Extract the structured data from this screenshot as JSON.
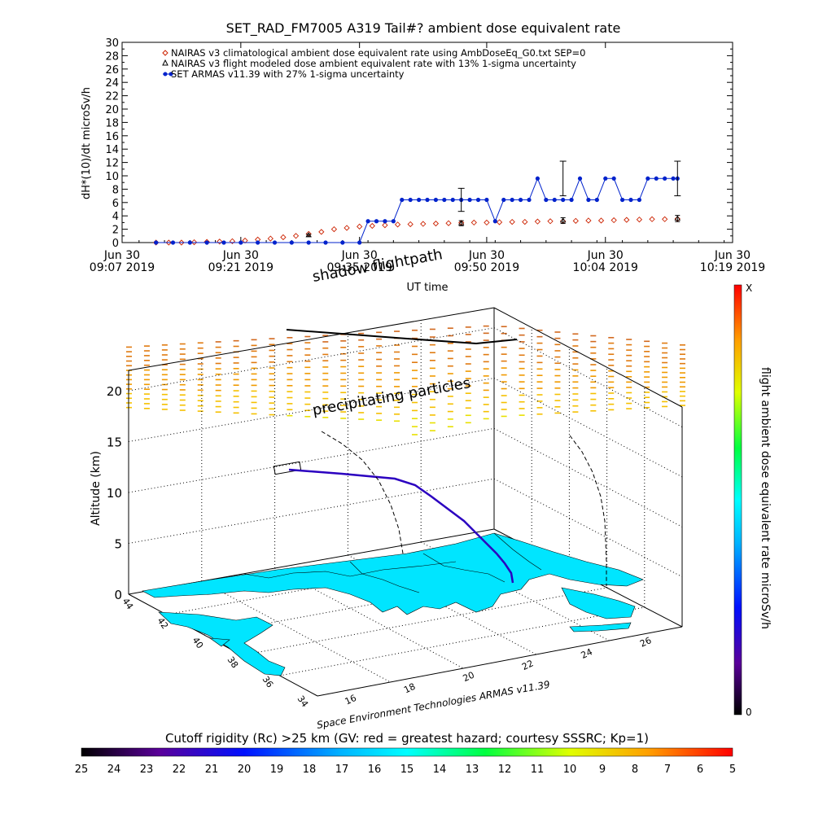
{
  "top_chart": {
    "title": "SET_RAD_FM7005  A319 Tail#? ambient dose equivalent rate",
    "ylabel": "dH*(10)/dt microSv/h",
    "xlabel": "UT time",
    "legend": [
      "NAIRAS v3 climatological ambient dose equivalent rate using AmbDoseEq_G0.txt SEP=0",
      "NAIRAS v3 flight modeled dose ambient equivalent rate with 13% 1-sigma uncertainty",
      "SET ARMAS v11.39 with 27% 1-sigma uncertainty"
    ],
    "y_ticks": [
      "0",
      "2",
      "4",
      "6",
      "8",
      "10",
      "12",
      "14",
      "16",
      "18",
      "20",
      "22",
      "24",
      "26",
      "28",
      "30"
    ],
    "x_ticks": [
      {
        "day": "Jun 30",
        "time": "09:07 2019"
      },
      {
        "day": "Jun 30",
        "time": "09:21 2019"
      },
      {
        "day": "Jun 30",
        "time": "09:35 2019"
      },
      {
        "day": "Jun 30",
        "time": "09:50 2019"
      },
      {
        "day": "Jun 30",
        "time": "10:04 2019"
      },
      {
        "day": "Jun 30",
        "time": "10:19 2019"
      }
    ]
  },
  "chart_data": [
    {
      "type": "line",
      "title": "SET_RAD_FM7005  A319 Tail#? ambient dose equivalent rate",
      "xlabel": "UT time",
      "ylabel": "dH*(10)/dt microSv/h",
      "x_unit": "minutes after 09:07 UT, Jun 30 2019",
      "xlim": [
        0,
        72
      ],
      "ylim": [
        0,
        30
      ],
      "grid": false,
      "legend_position": "top-left",
      "series": [
        {
          "name": "NAIRAS v3 climatological ambient dose equivalent rate using AmbDoseEq_G0.txt SEP=0",
          "color": "#cc2200",
          "marker": "diamond",
          "x": [
            4,
            5.5,
            7,
            8.5,
            10,
            11.5,
            13,
            14.5,
            16,
            17.5,
            19,
            20.5,
            22,
            23.5,
            25,
            26.5,
            28,
            29.5,
            31,
            32.5,
            34,
            35.5,
            37,
            38.5,
            40,
            41.5,
            43,
            44.5,
            46,
            47.5,
            49,
            50.5,
            52,
            53.5,
            55,
            56.5,
            58,
            59.5,
            61,
            62.5,
            64,
            65.5
          ],
          "values": [
            0,
            0,
            0,
            0.05,
            0.1,
            0.15,
            0.2,
            0.3,
            0.45,
            0.6,
            0.8,
            1.0,
            1.3,
            1.6,
            2.0,
            2.2,
            2.4,
            2.5,
            2.6,
            2.7,
            2.75,
            2.8,
            2.85,
            2.9,
            2.95,
            3.0,
            3.0,
            3.05,
            3.1,
            3.1,
            3.15,
            3.2,
            3.2,
            3.25,
            3.3,
            3.3,
            3.35,
            3.4,
            3.45,
            3.5,
            3.5,
            3.55
          ]
        },
        {
          "name": "NAIRAS v3 flight modeled dose ambient equivalent rate with 13% 1-sigma uncertainty",
          "color": "#000000",
          "marker": "triangle",
          "x": [
            22,
            40,
            52,
            65.5
          ],
          "values": [
            1.1,
            2.9,
            3.3,
            3.6
          ],
          "error_pct": 13
        },
        {
          "name": "SET ARMAS v11.39 with 27% 1-sigma uncertainty",
          "color": "#0022cc",
          "marker": "circle",
          "x": [
            4,
            6,
            8,
            10,
            12,
            14,
            16,
            18,
            20,
            22,
            24,
            26,
            28,
            29,
            30,
            31,
            32,
            33,
            34,
            35,
            36,
            37,
            38,
            39,
            40,
            41,
            42,
            43,
            44,
            45,
            46,
            47,
            48,
            49,
            50,
            51,
            52,
            53,
            54,
            55,
            56,
            57,
            58,
            59,
            60,
            61,
            62,
            63,
            64,
            65,
            65.5
          ],
          "values": [
            0,
            0,
            0,
            0,
            0,
            0,
            0,
            0,
            0,
            0,
            0,
            0,
            0,
            3.2,
            3.2,
            3.2,
            3.2,
            6.4,
            6.4,
            6.4,
            6.4,
            6.4,
            6.4,
            6.4,
            6.4,
            6.4,
            6.4,
            6.4,
            3.2,
            6.4,
            6.4,
            6.4,
            6.4,
            9.6,
            6.4,
            6.4,
            6.4,
            6.4,
            9.6,
            6.4,
            6.4,
            9.6,
            9.6,
            6.4,
            6.4,
            6.4,
            9.6,
            9.6,
            9.6,
            9.6,
            9.6
          ],
          "error_pct": 27
        }
      ]
    },
    {
      "type": "scatter",
      "title": "",
      "dimensions": "3d",
      "zlabel": "Altitude (km)",
      "zlim": [
        0,
        22
      ],
      "z_ticks": [
        "0",
        "5",
        "10",
        "15",
        "20"
      ],
      "lat_ticks": [
        "34",
        "36",
        "38",
        "40",
        "42",
        "44"
      ],
      "lon_ticks": [
        "16",
        "18",
        "20",
        "22",
        "24",
        "26"
      ],
      "annotations": [
        "precipitating particles",
        "shadow flightpath"
      ]
    }
  ],
  "panel3d": {
    "altitude_label": "Altitude (km)",
    "z_ticks": [
      "0",
      "5",
      "10",
      "15",
      "20"
    ],
    "lat_ticks": [
      "34",
      "36",
      "38",
      "40",
      "42",
      "44"
    ],
    "lon_ticks": [
      "16",
      "18",
      "20",
      "22",
      "24",
      "26"
    ],
    "annotation_particles": "precipitating particles",
    "annotation_shadow": "shadow flightpath",
    "credit": "Space Environment Technologies ARMAS v11.39"
  },
  "colorbar_right": {
    "label": "flight ambient dose equivalent rate microSv/h",
    "top": "X",
    "bottom": "0"
  },
  "colorbar_bottom": {
    "title": "Cutoff rigidity (Rc) >25 km (GV: red = greatest hazard; courtesy SSSRC; Kp=1)",
    "ticks": [
      "25",
      "24",
      "23",
      "22",
      "21",
      "20",
      "19",
      "18",
      "17",
      "16",
      "15",
      "14",
      "13",
      "12",
      "11",
      "10",
      "9",
      "8",
      "7",
      "6",
      "5"
    ]
  },
  "colors": {
    "nairas_clim": "#cc2200",
    "armas": "#0022cc",
    "land": "#00e5ff"
  }
}
